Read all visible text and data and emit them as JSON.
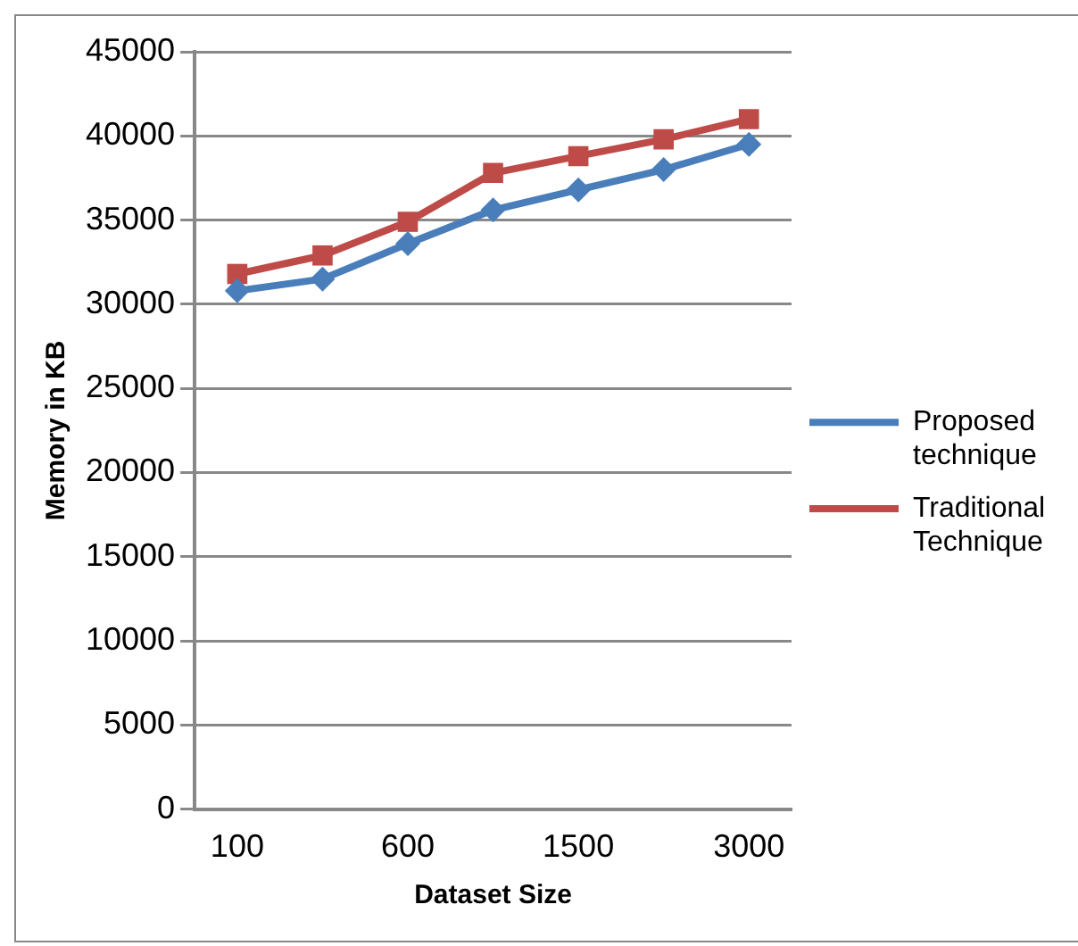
{
  "chart_data": {
    "type": "line",
    "xlabel": "Dataset Size",
    "ylabel": "Memory in KB",
    "categories": [
      "100",
      null,
      "600",
      null,
      "1500",
      null,
      "3000"
    ],
    "series": [
      {
        "name": "Proposed technique",
        "color": "#4a7ebb",
        "marker": "diamond",
        "values": [
          30800,
          31500,
          33600,
          35600,
          36800,
          38000,
          39500
        ]
      },
      {
        "name": "Traditional Technique",
        "color": "#be4b48",
        "marker": "square",
        "values": [
          31800,
          32900,
          34900,
          37800,
          38800,
          39800,
          41000
        ]
      }
    ],
    "ylim": [
      0,
      45000
    ],
    "yticks": [
      0,
      5000,
      10000,
      15000,
      20000,
      25000,
      30000,
      35000,
      40000,
      45000
    ],
    "grid": "y",
    "legend": "right"
  }
}
